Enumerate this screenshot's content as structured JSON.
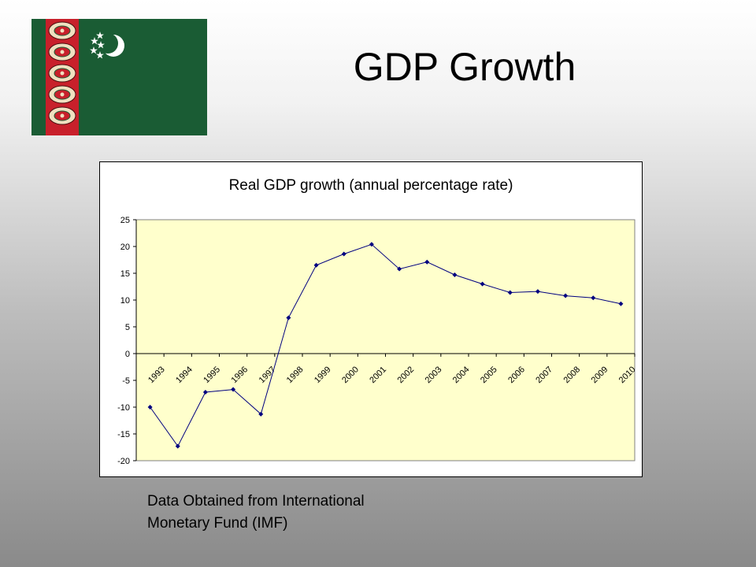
{
  "slide": {
    "title": "GDP Growth",
    "source_line1": "Data Obtained from International",
    "source_line2": "Monetary Fund (IMF)"
  },
  "flag": {
    "country": "Turkmenistan",
    "field_color": "#1a5c34",
    "stripe_color": "#c8202b",
    "emblem_color": "#ffffff"
  },
  "chart_data": {
    "type": "line",
    "title": "Real GDP growth (annual percentage rate)",
    "xlabel": "",
    "ylabel": "",
    "x": [
      "1993",
      "1994",
      "1995",
      "1996",
      "1997",
      "1998",
      "1999",
      "2000",
      "2001",
      "2002",
      "2003",
      "2004",
      "2005",
      "2006",
      "2007",
      "2008",
      "2009",
      "2010"
    ],
    "y": [
      -10,
      -17.3,
      -7.2,
      -6.7,
      -11.3,
      6.7,
      16.5,
      18.6,
      20.4,
      15.8,
      17.1,
      14.7,
      13.0,
      11.4,
      11.6,
      10.8,
      10.4,
      9.3
    ],
    "ylim": [
      -20,
      25
    ],
    "yticks": [
      25,
      20,
      15,
      10,
      5,
      0,
      -5,
      -10,
      -15,
      -20
    ],
    "grid": false,
    "plot_background": "#ffffcc",
    "line_color": "#000080",
    "marker_color": "#000080",
    "legend": "none"
  }
}
